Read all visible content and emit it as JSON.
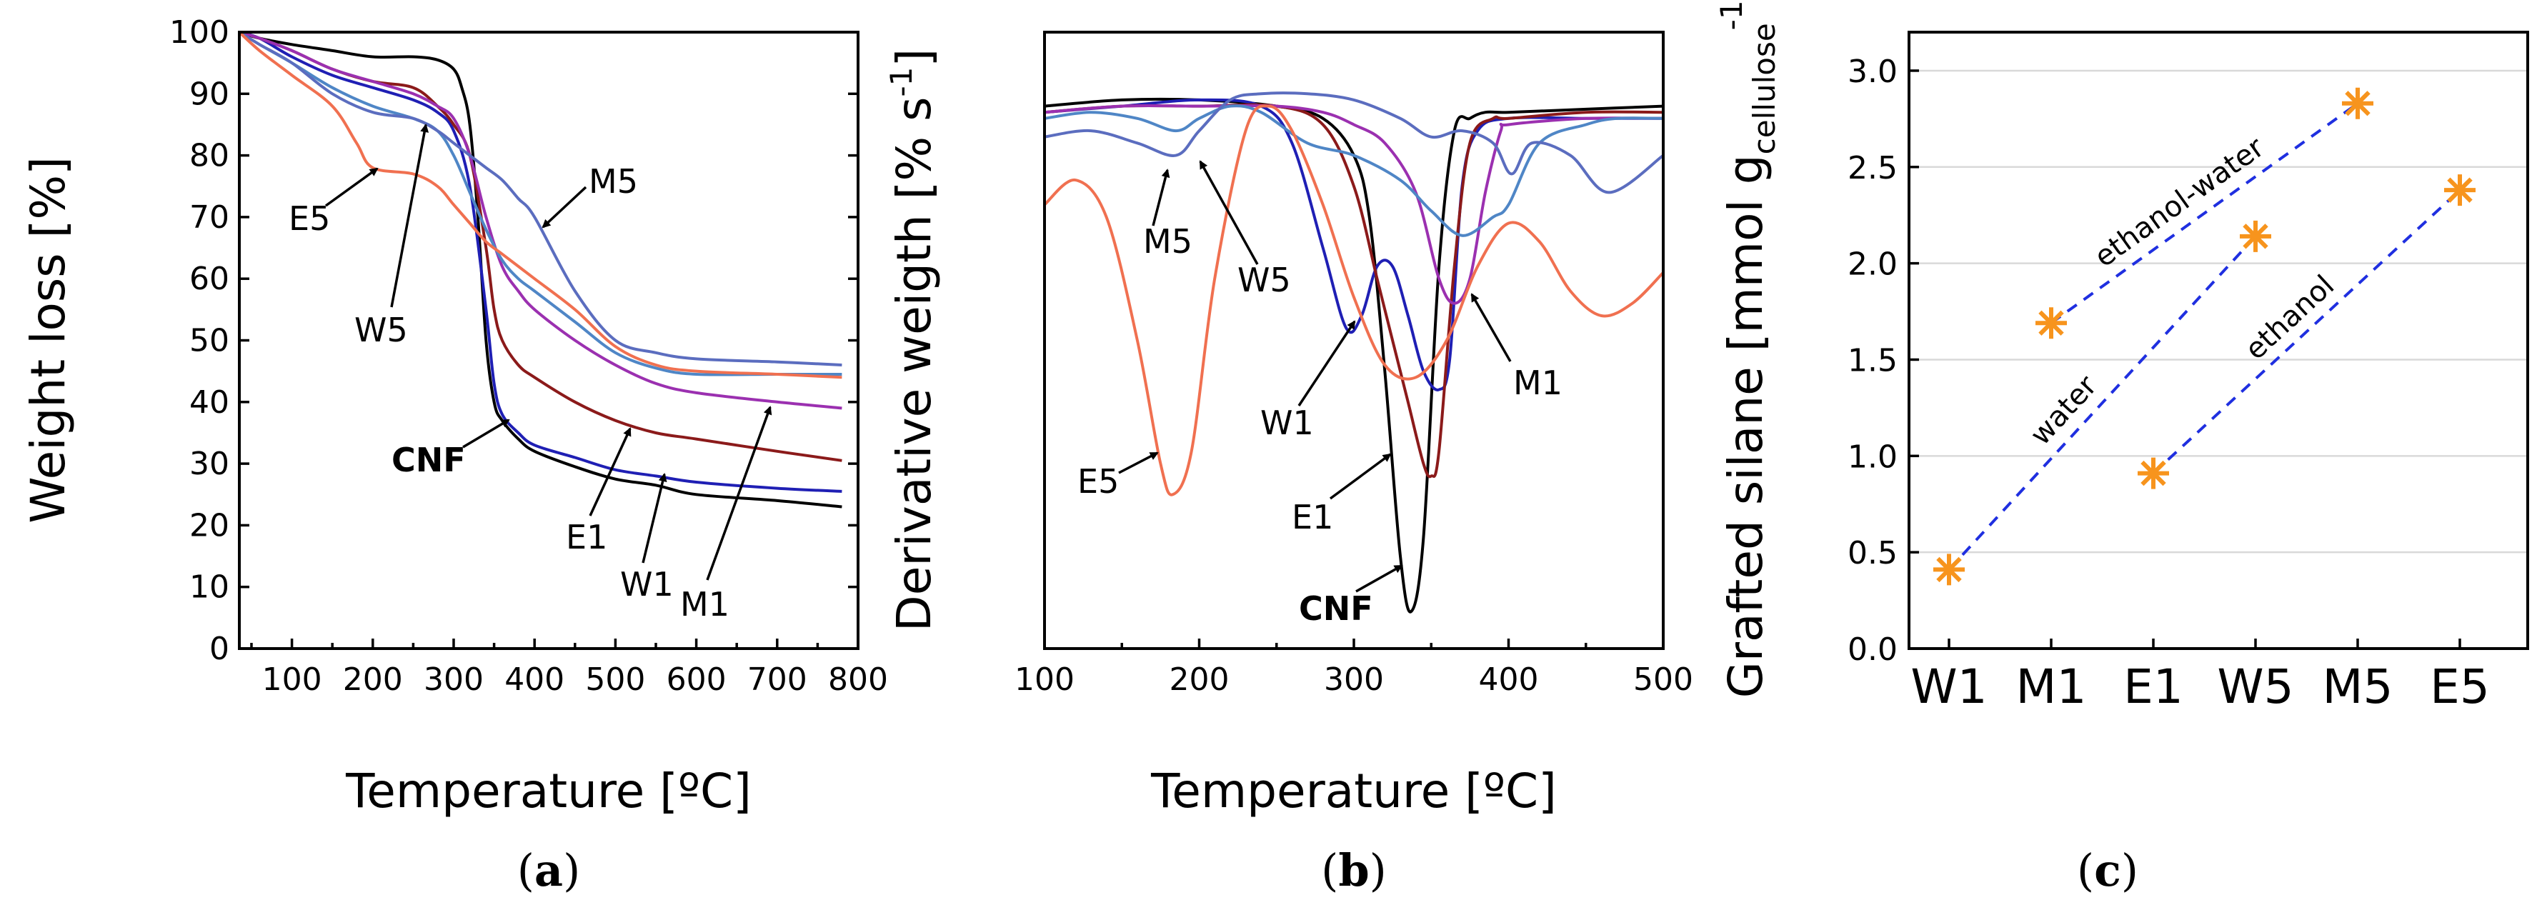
{
  "chart_data": [
    {
      "type": "line",
      "panel": "a",
      "caption": "a",
      "xlabel": "Temperature [ºC]",
      "ylabel": "Weight loss [%]",
      "xlim": [
        35,
        800
      ],
      "ylim": [
        0,
        100
      ],
      "xticks": [
        100,
        200,
        300,
        400,
        500,
        600,
        700,
        800
      ],
      "yticks": [
        0,
        10,
        20,
        30,
        40,
        50,
        60,
        70,
        80,
        90,
        100
      ],
      "series": [
        {
          "name": "CNF",
          "color": "#000000",
          "x": [
            35,
            60,
            100,
            150,
            200,
            250,
            280,
            300,
            310,
            320,
            330,
            340,
            350,
            360,
            380,
            400,
            450,
            500,
            550,
            600,
            700,
            780
          ],
          "y": [
            100,
            99,
            98,
            97,
            96,
            96,
            95.5,
            94,
            91,
            85,
            70,
            50,
            40,
            37,
            34,
            32,
            29.5,
            27.5,
            26.5,
            25,
            24,
            23
          ]
        },
        {
          "name": "W1",
          "color": "#1f1fb4",
          "x": [
            35,
            60,
            100,
            150,
            200,
            250,
            280,
            300,
            320,
            340,
            350,
            360,
            380,
            400,
            450,
            500,
            550,
            600,
            700,
            780
          ],
          "y": [
            100,
            99,
            96,
            93,
            91,
            89,
            87,
            84,
            75,
            55,
            43,
            38,
            35,
            33,
            31,
            29,
            28,
            27,
            26,
            25.5
          ]
        },
        {
          "name": "E1",
          "color": "#8b1a1a",
          "x": [
            35,
            60,
            100,
            150,
            200,
            250,
            280,
            300,
            320,
            340,
            350,
            360,
            380,
            400,
            450,
            500,
            550,
            600,
            700,
            780
          ],
          "y": [
            100,
            99,
            97,
            94,
            92,
            91,
            88,
            85,
            80,
            65,
            55,
            50,
            46,
            44,
            40,
            37,
            35,
            34,
            32,
            30.5
          ]
        },
        {
          "name": "M1",
          "color": "#9b30b0",
          "x": [
            35,
            60,
            100,
            150,
            200,
            250,
            280,
            300,
            320,
            340,
            360,
            380,
            400,
            450,
            500,
            550,
            600,
            700,
            780
          ],
          "y": [
            100,
            99,
            97,
            94,
            92,
            90,
            88,
            86,
            80,
            70,
            62,
            58,
            55,
            50,
            46,
            43,
            41.5,
            40,
            39
          ]
        },
        {
          "name": "W5",
          "color": "#4f86c6",
          "x": [
            35,
            60,
            100,
            150,
            200,
            250,
            280,
            300,
            320,
            340,
            360,
            380,
            400,
            450,
            500,
            550,
            600,
            700,
            780
          ],
          "y": [
            100,
            98,
            95,
            91,
            88,
            86,
            84,
            80,
            74,
            68,
            63,
            60,
            58,
            53,
            48,
            45.5,
            44.5,
            44.5,
            44.5
          ]
        },
        {
          "name": "M5",
          "color": "#5b6dbf",
          "x": [
            35,
            60,
            100,
            150,
            200,
            250,
            280,
            300,
            320,
            340,
            360,
            380,
            400,
            450,
            500,
            550,
            600,
            700,
            780
          ],
          "y": [
            100,
            98,
            95,
            90,
            87,
            86,
            84,
            82,
            80,
            78,
            76,
            73,
            70,
            58,
            50,
            48,
            47,
            46.5,
            46
          ]
        },
        {
          "name": "E5",
          "color": "#f07050",
          "x": [
            35,
            60,
            100,
            150,
            180,
            200,
            250,
            280,
            300,
            320,
            340,
            360,
            380,
            400,
            450,
            500,
            550,
            600,
            700,
            780
          ],
          "y": [
            100,
            97,
            93,
            88,
            82,
            78,
            77,
            75,
            72,
            69,
            66,
            64,
            62,
            60,
            55,
            49,
            46,
            45,
            44.5,
            44
          ]
        }
      ],
      "annotations": [
        "E5",
        "W5",
        "M5",
        "CNF",
        "E1",
        "W1",
        "M1"
      ]
    },
    {
      "type": "line",
      "panel": "b",
      "caption": "b",
      "xlabel": "Temperature [ºC]",
      "ylabel": "Derivative weigth [% s",
      "ylabel_sup": "-1",
      "ylabel_end": "]",
      "xlim": [
        100,
        500
      ],
      "xticks": [
        100,
        200,
        300,
        400,
        500
      ],
      "ylim": [
        0,
        1
      ],
      "series": [
        {
          "name": "CNF",
          "color": "#000000",
          "x": [
            100,
            150,
            200,
            250,
            280,
            300,
            310,
            320,
            330,
            337,
            345,
            355,
            365,
            375,
            385,
            400,
            450,
            500
          ],
          "y": [
            0.88,
            0.89,
            0.89,
            0.88,
            0.86,
            0.8,
            0.7,
            0.45,
            0.15,
            0.06,
            0.18,
            0.62,
            0.84,
            0.86,
            0.87,
            0.87,
            0.875,
            0.88
          ]
        },
        {
          "name": "W1",
          "color": "#1f1fb4",
          "x": [
            100,
            150,
            200,
            240,
            260,
            280,
            295,
            305,
            315,
            325,
            335,
            345,
            355,
            362,
            370,
            380,
            400,
            450,
            500
          ],
          "y": [
            0.87,
            0.88,
            0.89,
            0.88,
            0.82,
            0.65,
            0.52,
            0.54,
            0.62,
            0.62,
            0.54,
            0.45,
            0.42,
            0.47,
            0.75,
            0.84,
            0.86,
            0.86,
            0.86
          ]
        },
        {
          "name": "E1",
          "color": "#8b1a1a",
          "x": [
            100,
            150,
            200,
            250,
            280,
            300,
            315,
            325,
            335,
            345,
            350,
            355,
            365,
            375,
            390,
            400,
            450,
            500
          ],
          "y": [
            0.87,
            0.88,
            0.88,
            0.88,
            0.85,
            0.75,
            0.6,
            0.5,
            0.4,
            0.3,
            0.28,
            0.32,
            0.62,
            0.82,
            0.86,
            0.86,
            0.87,
            0.87
          ]
        },
        {
          "name": "M1",
          "color": "#9b30b0",
          "x": [
            100,
            150,
            200,
            250,
            280,
            300,
            320,
            340,
            355,
            365,
            375,
            385,
            395,
            400,
            450,
            500
          ],
          "y": [
            0.87,
            0.88,
            0.88,
            0.88,
            0.87,
            0.85,
            0.82,
            0.74,
            0.6,
            0.56,
            0.6,
            0.74,
            0.84,
            0.85,
            0.86,
            0.86
          ]
        },
        {
          "name": "W5",
          "color": "#4f86c6",
          "x": [
            100,
            130,
            160,
            185,
            200,
            220,
            240,
            270,
            300,
            330,
            350,
            370,
            390,
            400,
            420,
            450,
            470,
            500
          ],
          "y": [
            0.86,
            0.87,
            0.86,
            0.84,
            0.86,
            0.88,
            0.87,
            0.82,
            0.8,
            0.76,
            0.71,
            0.67,
            0.7,
            0.72,
            0.82,
            0.85,
            0.86,
            0.86
          ]
        },
        {
          "name": "M5",
          "color": "#5b6dbf",
          "x": [
            100,
            130,
            160,
            185,
            200,
            220,
            240,
            270,
            300,
            330,
            350,
            370,
            390,
            402,
            415,
            440,
            465,
            500
          ],
          "y": [
            0.83,
            0.84,
            0.82,
            0.8,
            0.84,
            0.89,
            0.9,
            0.9,
            0.89,
            0.86,
            0.83,
            0.84,
            0.82,
            0.77,
            0.82,
            0.8,
            0.74,
            0.8
          ]
        },
        {
          "name": "E5",
          "color": "#f07050",
          "x": [
            100,
            120,
            140,
            160,
            175,
            183,
            195,
            210,
            230,
            245,
            260,
            280,
            300,
            320,
            340,
            360,
            380,
            400,
            420,
            440,
            460,
            480,
            500
          ],
          "y": [
            0.72,
            0.76,
            0.7,
            0.5,
            0.3,
            0.25,
            0.32,
            0.6,
            0.84,
            0.88,
            0.84,
            0.72,
            0.57,
            0.46,
            0.44,
            0.5,
            0.62,
            0.69,
            0.66,
            0.58,
            0.54,
            0.56,
            0.61
          ]
        }
      ],
      "annotations": [
        "M5",
        "W5",
        "W1",
        "E5",
        "E1",
        "CNF",
        "M1"
      ]
    },
    {
      "type": "scatter",
      "panel": "c",
      "caption": "c",
      "xlabel": "",
      "ylabel": "Grafted silane [mmol g",
      "ylabel_sup": "-1",
      "ylabel_sub": "cellulose",
      "ylabel_end": "]",
      "categories": [
        "W1",
        "M1",
        "E1",
        "W5",
        "M5",
        "E5"
      ],
      "values": [
        0.41,
        1.69,
        0.91,
        2.14,
        2.83,
        2.38
      ],
      "ylim": [
        0.0,
        3.2
      ],
      "yticks": [
        "0.0",
        "0.5",
        "1.0",
        "1.5",
        "2.0",
        "2.5",
        "3.0"
      ],
      "grid": true,
      "marker_color": "#f7941d",
      "fit_color": "#1f2fe0",
      "fit_lines": [
        {
          "label": "ethanol-water",
          "from": "M1",
          "to": "M5"
        },
        {
          "label": "water",
          "from": "W1",
          "to": "W5"
        },
        {
          "label": "ethanol",
          "from": "E1",
          "to": "E5"
        }
      ]
    }
  ]
}
